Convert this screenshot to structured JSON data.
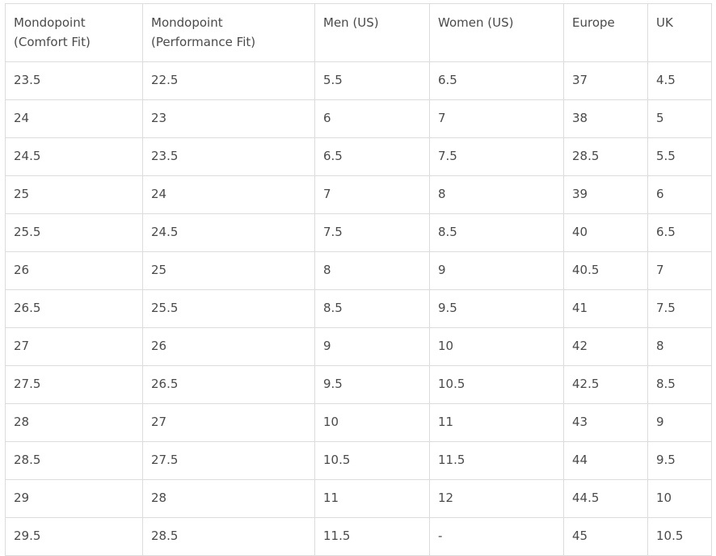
{
  "table": {
    "headers": [
      [
        "Mondopoint",
        "(Comfort Fit)"
      ],
      [
        "Mondopoint",
        "(Performance Fit)"
      ],
      [
        "Men (US)"
      ],
      [
        "Women (US)"
      ],
      [
        "Europe"
      ],
      [
        "UK"
      ]
    ],
    "rows": [
      [
        "23.5",
        "22.5",
        "5.5",
        "6.5",
        "37",
        "4.5"
      ],
      [
        "24",
        "23",
        "6",
        "7",
        "38",
        "5"
      ],
      [
        "24.5",
        "23.5",
        "6.5",
        "7.5",
        "28.5",
        "5.5"
      ],
      [
        "25",
        "24",
        "7",
        "8",
        "39",
        "6"
      ],
      [
        "25.5",
        "24.5",
        "7.5",
        "8.5",
        "40",
        "6.5"
      ],
      [
        "26",
        "25",
        "8",
        "9",
        "40.5",
        "7"
      ],
      [
        "26.5",
        "25.5",
        "8.5",
        "9.5",
        "41",
        "7.5"
      ],
      [
        "27",
        "26",
        "9",
        "10",
        "42",
        "8"
      ],
      [
        "27.5",
        "26.5",
        "9.5",
        "10.5",
        "42.5",
        "8.5"
      ],
      [
        "28",
        "27",
        "10",
        "11",
        "43",
        "9"
      ],
      [
        "28.5",
        "27.5",
        "10.5",
        "11.5",
        "44",
        "9.5"
      ],
      [
        "29",
        "28",
        "11",
        "12",
        "44.5",
        "10"
      ],
      [
        "29.5",
        "28.5",
        "11.5",
        "-",
        "45",
        "10.5"
      ]
    ]
  },
  "colors": {
    "border": "#dcdcdc",
    "text": "#4a4a4a",
    "background": "#ffffff"
  }
}
